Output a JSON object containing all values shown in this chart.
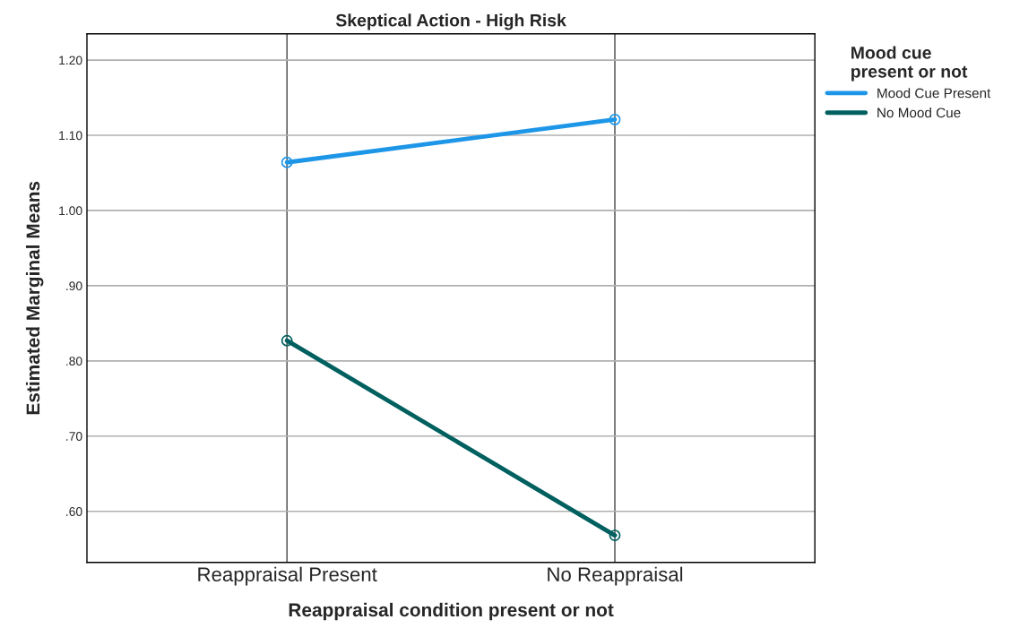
{
  "chart_data": {
    "type": "line",
    "title": "Skeptical Action - High Risk",
    "xlabel": "Reappraisal condition present or not",
    "ylabel": "Estimated Marginal Means",
    "legend_title": "Mood cue\npresent or not",
    "categories": [
      "Reappraisal Present",
      "No Reappraisal"
    ],
    "series": [
      {
        "name": "Mood Cue Present",
        "color": "#1e96e8",
        "values": [
          1.064,
          1.121
        ]
      },
      {
        "name": "No Mood Cue",
        "color": "#00605f",
        "values": [
          0.827,
          0.568
        ]
      }
    ],
    "ylim": [
      0.532,
      1.235
    ],
    "yticks": [
      {
        "value": 0.6,
        "label": ".60"
      },
      {
        "value": 0.7,
        "label": ".70"
      },
      {
        "value": 0.8,
        "label": ".80"
      },
      {
        "value": 0.9,
        "label": ".90"
      },
      {
        "value": 1.0,
        "label": "1.00"
      },
      {
        "value": 1.1,
        "label": "1.10"
      },
      {
        "value": 1.2,
        "label": "1.20"
      }
    ],
    "grid": true,
    "legend": "top right",
    "marker": "circle",
    "line_style": "solid"
  }
}
